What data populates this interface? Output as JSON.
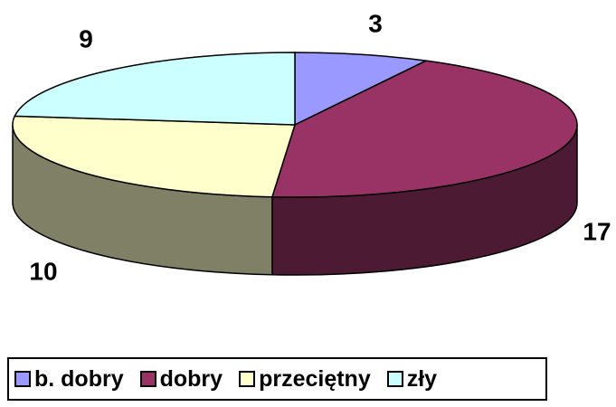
{
  "chart_data": {
    "type": "pie3d",
    "categories": [
      "b. dobry",
      "dobry",
      "przeciętny",
      "zły"
    ],
    "values": [
      3,
      17,
      10,
      9
    ],
    "colors": [
      "#9999ff",
      "#993366",
      "#ffffcc",
      "#ccffff"
    ],
    "legend": "bottom"
  }
}
